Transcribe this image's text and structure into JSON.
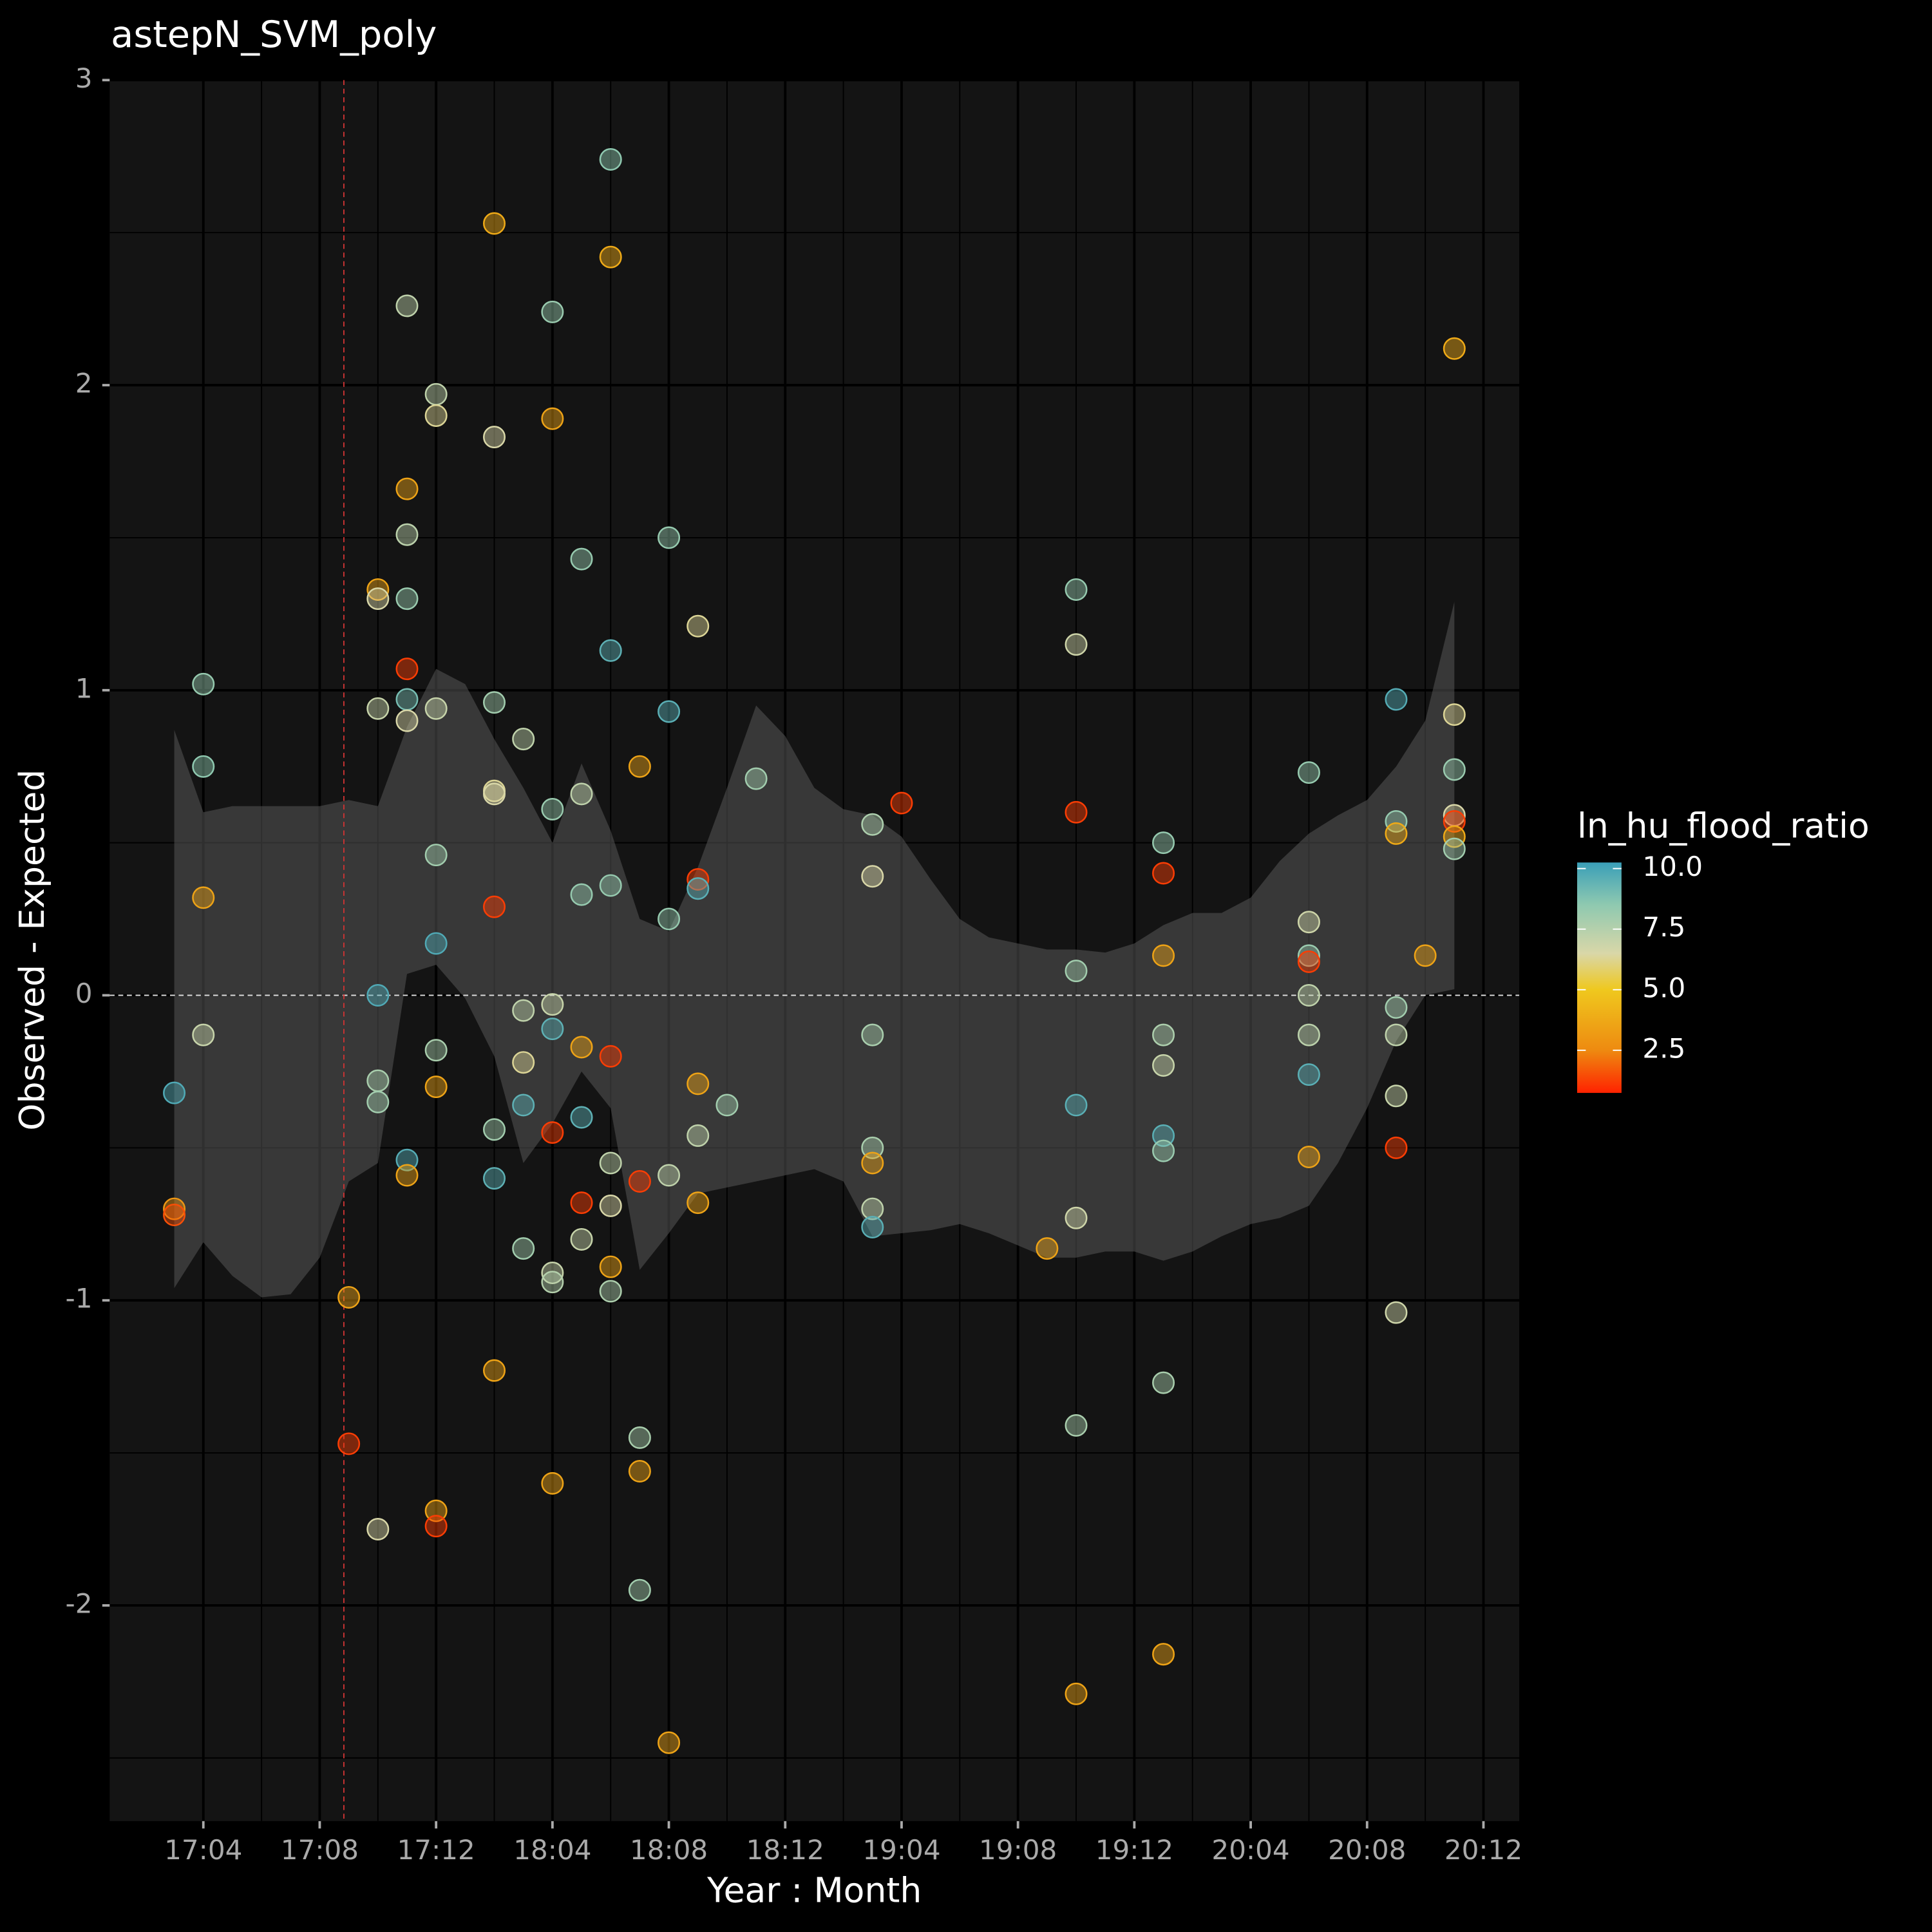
{
  "chart_data": {
    "type": "scatter",
    "title": "astepN_SVM_poly",
    "x_label": "Year : Month",
    "y_label": "Observed - Expected",
    "xlim": [
      0.78,
      49.23
    ],
    "xticks": [
      {
        "value": 4,
        "label": "17:04"
      },
      {
        "value": 8,
        "label": "17:08"
      },
      {
        "value": 12,
        "label": "17:12"
      },
      {
        "value": 16,
        "label": "18:04"
      },
      {
        "value": 20,
        "label": "18:08"
      },
      {
        "value": 24,
        "label": "18:12"
      },
      {
        "value": 28,
        "label": "19:04"
      },
      {
        "value": 32,
        "label": "19:08"
      },
      {
        "value": 36,
        "label": "19:12"
      },
      {
        "value": 40,
        "label": "20:04"
      },
      {
        "value": 44,
        "label": "20:08"
      },
      {
        "value": 48,
        "label": "20:12"
      }
    ],
    "ylim": [
      -2.707,
      3
    ],
    "yticks": [
      -2,
      -1,
      0,
      1,
      2,
      3
    ],
    "grid": true,
    "hline": 0,
    "vline": 8.83,
    "x": [
      3,
      3,
      3,
      4,
      4,
      4,
      4,
      9,
      9,
      10,
      10,
      10,
      10,
      10,
      10,
      10,
      11,
      11,
      11,
      11,
      11,
      11,
      11,
      11,
      11,
      12,
      12,
      12,
      12,
      12,
      12,
      12,
      12,
      12,
      14,
      14,
      14,
      14,
      14,
      14,
      14,
      14,
      14,
      15,
      15,
      15,
      15,
      15,
      16,
      16,
      16,
      16,
      16,
      16,
      16,
      16,
      16,
      17,
      17,
      17,
      17,
      17,
      17,
      17,
      18,
      18,
      18,
      18,
      18,
      18,
      18,
      18,
      18,
      19,
      19,
      19,
      19,
      19,
      20,
      20,
      20,
      20,
      20,
      21,
      21,
      21,
      21,
      21,
      21,
      22,
      23,
      27,
      27,
      27,
      27,
      27,
      27,
      27,
      28,
      33,
      34,
      34,
      34,
      34,
      34,
      34,
      34,
      34,
      37,
      37,
      37,
      37,
      37,
      37,
      37,
      37,
      37,
      42,
      42,
      42,
      42,
      42,
      42,
      42,
      42,
      45,
      45,
      45,
      45,
      45,
      45,
      45,
      45,
      46,
      47,
      47,
      47,
      47,
      47,
      47,
      47
    ],
    "values": [
      -0.32,
      -0.7,
      -0.72,
      1.02,
      0.75,
      0.32,
      -0.13,
      -0.99,
      -1.47,
      1.33,
      1.3,
      0.94,
      0.0,
      -0.28,
      -0.35,
      -1.75,
      2.26,
      1.66,
      1.51,
      1.3,
      1.07,
      0.97,
      0.9,
      -0.54,
      -0.59,
      1.97,
      1.9,
      0.94,
      0.46,
      0.17,
      -0.18,
      -0.3,
      -1.69,
      -1.74,
      2.53,
      1.83,
      0.96,
      0.67,
      0.66,
      0.29,
      -0.44,
      -0.6,
      -1.23,
      0.84,
      -0.05,
      -0.22,
      -0.36,
      -0.83,
      2.24,
      1.89,
      0.61,
      -0.03,
      -0.11,
      -0.45,
      -0.91,
      -0.94,
      -1.6,
      1.43,
      0.66,
      0.33,
      -0.17,
      -0.4,
      -0.68,
      -0.8,
      2.74,
      2.42,
      1.13,
      0.36,
      -0.2,
      -0.55,
      -0.69,
      -0.89,
      -0.97,
      0.75,
      -0.61,
      -1.45,
      -1.56,
      -1.95,
      1.5,
      0.93,
      0.25,
      -0.59,
      -2.45,
      1.21,
      0.38,
      0.35,
      -0.29,
      -0.46,
      -0.68,
      -0.36,
      0.71,
      0.56,
      0.39,
      -0.13,
      -0.5,
      -0.55,
      -0.7,
      -0.76,
      0.63,
      -0.83,
      1.33,
      1.15,
      0.6,
      0.08,
      -0.36,
      -0.73,
      -1.41,
      -2.29,
      0.5,
      0.4,
      0.13,
      -0.13,
      -0.23,
      -0.46,
      -0.51,
      -1.27,
      -2.16,
      0.73,
      0.24,
      0.13,
      0.11,
      0.0,
      -0.13,
      -0.26,
      -0.53,
      0.97,
      0.57,
      0.53,
      -0.04,
      -0.13,
      -0.33,
      -0.5,
      -1.04,
      0.13,
      2.12,
      0.92,
      0.74,
      0.59,
      0.57,
      0.52,
      0.48
    ],
    "color_values": [
      9.8,
      3,
      1.5,
      8.3,
      8.5,
      3.5,
      7,
      3.5,
      1.2,
      3.5,
      6.5,
      7,
      9.8,
      7.8,
      8,
      6.5,
      7.2,
      3.5,
      7.3,
      8.2,
      1.2,
      9,
      6.5,
      9.7,
      3.5,
      7.2,
      6.3,
      7,
      8,
      9.8,
      7.8,
      3.5,
      3.5,
      1.2,
      3.8,
      6.5,
      8,
      6.3,
      6.5,
      1.2,
      8,
      9.5,
      3.5,
      7.2,
      7.2,
      6.3,
      9.5,
      8,
      8.2,
      3.5,
      8.2,
      7,
      9.5,
      1.2,
      7,
      7.5,
      3.5,
      8.3,
      7.2,
      8.3,
      3.5,
      9.5,
      1.2,
      7,
      8.5,
      3.8,
      9.5,
      8.3,
      1.2,
      7.2,
      6.5,
      3.5,
      7.7,
      3.5,
      1.2,
      7.8,
      3.5,
      8,
      8.3,
      9.6,
      8.3,
      7.2,
      3.5,
      6.3,
      1.2,
      9.6,
      3.5,
      7.2,
      3.5,
      8,
      8,
      7.7,
      6.5,
      7.8,
      7.8,
      3.5,
      7.2,
      9.6,
      1.2,
      3.5,
      8.3,
      6.8,
      1.2,
      8,
      9.6,
      6.8,
      7.8,
      3.5,
      8.3,
      1.2,
      3.5,
      7.7,
      7,
      9.6,
      8.2,
      7.8,
      3.5,
      8.3,
      6.8,
      8.2,
      1.2,
      7.2,
      7.3,
      9.6,
      3.5,
      9.7,
      8.3,
      3.8,
      8,
      7.2,
      7,
      1.2,
      6.8,
      3.5,
      3.8,
      6.3,
      8.2,
      6.5,
      1.2,
      3.8,
      8
    ],
    "band": {
      "x": [
        3,
        4,
        5,
        6,
        7,
        8,
        9,
        10,
        11,
        12,
        13,
        14,
        15,
        16,
        17,
        18,
        19,
        20,
        21,
        22,
        23,
        24,
        25,
        26,
        27,
        28,
        29,
        30,
        31,
        32,
        33,
        34,
        35,
        36,
        37,
        38,
        39,
        40,
        41,
        42,
        43,
        44,
        45,
        46,
        47
      ],
      "upper": [
        0.87,
        0.6,
        0.62,
        0.62,
        0.62,
        0.62,
        0.64,
        0.62,
        0.88,
        1.07,
        1.02,
        0.84,
        0.68,
        0.5,
        0.76,
        0.54,
        0.25,
        0.21,
        0.42,
        0.68,
        0.95,
        0.85,
        0.68,
        0.61,
        0.59,
        0.52,
        0.38,
        0.25,
        0.19,
        0.17,
        0.15,
        0.15,
        0.14,
        0.17,
        0.23,
        0.27,
        0.27,
        0.32,
        0.44,
        0.53,
        0.59,
        0.64,
        0.75,
        0.9,
        1.29
      ],
      "lower": [
        -0.96,
        -0.81,
        -0.92,
        -0.99,
        -0.98,
        -0.86,
        -0.61,
        -0.55,
        0.07,
        0.1,
        -0.01,
        -0.2,
        -0.55,
        -0.42,
        -0.25,
        -0.37,
        -0.9,
        -0.78,
        -0.65,
        -0.63,
        -0.61,
        -0.59,
        -0.57,
        -0.61,
        -0.79,
        -0.78,
        -0.77,
        -0.75,
        -0.78,
        -0.82,
        -0.86,
        -0.86,
        -0.84,
        -0.84,
        -0.87,
        -0.84,
        -0.79,
        -0.75,
        -0.73,
        -0.69,
        -0.55,
        -0.37,
        -0.15,
        0.0,
        0.02
      ]
    },
    "colorbar": {
      "title": "ln_hu_flood_ratio",
      "lim": [
        0.74,
        10.25
      ],
      "ticks": [
        2.5,
        {
          "value": 5,
          "label": "5.0"
        },
        7.5,
        {
          "value": 10,
          "label": "10.0"
        }
      ],
      "stops": [
        0.74,
        2.5,
        5,
        6.5,
        8.5,
        10.25
      ],
      "colors": [
        "#ff2200",
        "#ee8a10",
        "#efc81e",
        "#d9d7a8",
        "#8fc9b0",
        "#3a9fb8"
      ]
    }
  }
}
